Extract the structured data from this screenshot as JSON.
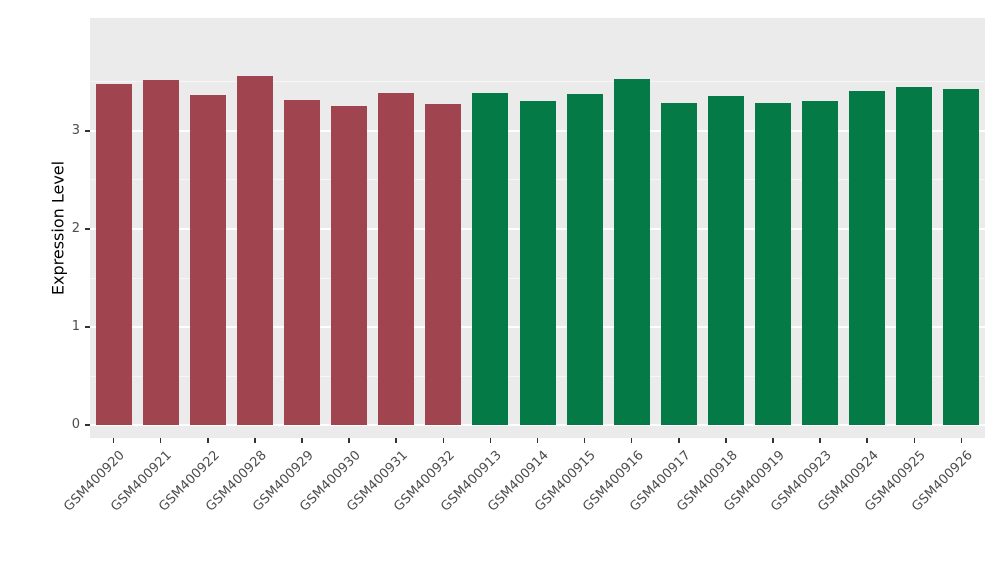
{
  "chart_data": {
    "type": "bar",
    "title": "",
    "xlabel": "",
    "ylabel": "Expression Level",
    "categories": [
      "GSM400920",
      "GSM400921",
      "GSM400922",
      "GSM400928",
      "GSM400929",
      "GSM400930",
      "GSM400931",
      "GSM400932",
      "GSM400913",
      "GSM400914",
      "GSM400915",
      "GSM400916",
      "GSM400917",
      "GSM400918",
      "GSM400919",
      "GSM400923",
      "GSM400924",
      "GSM400925",
      "GSM400926"
    ],
    "values": [
      3.48,
      3.52,
      3.37,
      3.56,
      3.31,
      3.25,
      3.39,
      3.27,
      3.39,
      3.3,
      3.38,
      3.53,
      3.28,
      3.36,
      3.28,
      3.3,
      3.41,
      3.45,
      3.43
    ],
    "groups": [
      0,
      0,
      0,
      0,
      0,
      0,
      0,
      0,
      1,
      1,
      1,
      1,
      1,
      1,
      1,
      1,
      1,
      1,
      1
    ],
    "group_colors": [
      "#A04550",
      "#047A47"
    ],
    "yticks": [
      0,
      1,
      2,
      3
    ],
    "ytick_labels": [
      "0",
      "1",
      "2",
      "3"
    ],
    "y_minor_ticks": [
      0.5,
      1.5,
      2.5,
      3.5
    ],
    "ylim": [
      0,
      4.15
    ],
    "render_range": [
      -0.13,
      4.15
    ],
    "grid": "on",
    "legend_position": "none",
    "panel_background": "#EBEBEB",
    "grid_color": "#FFFFFF",
    "axis_text_color": "#4D4D4D"
  }
}
